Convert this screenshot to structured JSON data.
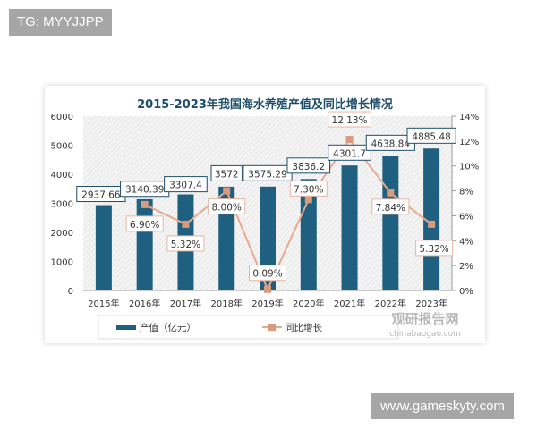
{
  "watermarks": {
    "top_left": "TG: MYYJJPP",
    "bottom_right": "www.gameskyty.com",
    "chart_logo": "观研报告网",
    "chart_logo_url": "chinabaogao.com"
  },
  "chart_data": {
    "type": "bar+line",
    "title": "2015-2023年我国海水养殖产值及同比增长情况",
    "categories": [
      "2015年",
      "2016年",
      "2017年",
      "2018年",
      "2019年",
      "2020年",
      "2021年",
      "2022年",
      "2023年"
    ],
    "series": [
      {
        "name": "产值（亿元）",
        "type": "bar",
        "axis": "left",
        "color": "#1f5f80",
        "values": [
          2937.66,
          3140.39,
          3307.4,
          3572,
          3575.29,
          3836.2,
          4301.7,
          4638.84,
          4885.48
        ],
        "labels": [
          "2937.66",
          "3140.39",
          "3307.4",
          "3572",
          "3575.29",
          "3836.2",
          "4301.7",
          "4638.84",
          "4885.48"
        ]
      },
      {
        "name": "同比增长",
        "type": "line",
        "axis": "right",
        "color": "#e8a98c",
        "values": [
          null,
          6.9,
          5.32,
          8.0,
          0.09,
          7.3,
          12.13,
          7.84,
          5.32
        ],
        "labels": [
          "",
          "6.90%",
          "5.32%",
          "8.00%",
          "0.09%",
          "7.30%",
          "12.13%",
          "7.84%",
          "5.32%"
        ]
      }
    ],
    "y_left": {
      "range": [
        0,
        6000
      ],
      "ticks": [
        "0",
        "1000",
        "2000",
        "3000",
        "4000",
        "5000",
        "6000"
      ]
    },
    "y_right": {
      "range": [
        0,
        14
      ],
      "ticks": [
        "0%",
        "2%",
        "4%",
        "6%",
        "8%",
        "10%",
        "12%",
        "14%"
      ]
    },
    "legend_position": "bottom",
    "grid": false
  }
}
